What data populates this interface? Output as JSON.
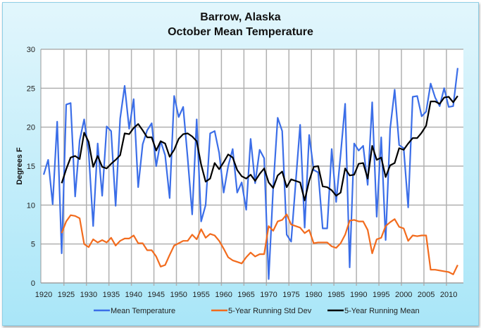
{
  "chart_data": {
    "type": "line",
    "title": "Barrow, Alaska",
    "subtitle": "October Mean Temperature",
    "xlabel": "",
    "ylabel": "Degrees F",
    "xlim": [
      1920,
      2012
    ],
    "ylim": [
      0,
      30
    ],
    "yticks": [
      0,
      5,
      10,
      15,
      20,
      25,
      30
    ],
    "xticks": [
      1920,
      1925,
      1930,
      1935,
      1940,
      1945,
      1950,
      1955,
      1960,
      1965,
      1970,
      1975,
      1980,
      1985,
      1990,
      1995,
      2000,
      2005,
      2010
    ],
    "grid": true,
    "legend": "bottom",
    "series": [
      {
        "name": "Mean Temperature",
        "color": "#3b6ee8",
        "start_year": 1920,
        "values": [
          13.9,
          15.8,
          10.1,
          20.7,
          3.8,
          22.9,
          23.1,
          11.1,
          18.3,
          21.0,
          16.8,
          7.3,
          17.9,
          11.2,
          20.1,
          19.5,
          9.9,
          21.1,
          25.3,
          19.8,
          23.6,
          12.3,
          17.8,
          19.6,
          20.5,
          15.0,
          18.2,
          16.4,
          10.9,
          24.0,
          21.3,
          22.6,
          16.0,
          8.8,
          21.0,
          7.9,
          10.0,
          19.2,
          19.5,
          16.7,
          11.6,
          15.0,
          17.2,
          11.6,
          12.9,
          9.4,
          18.5,
          12.8,
          17.1,
          16.0,
          0.5,
          12.2,
          21.2,
          19.5,
          6.2,
          5.3,
          12.8,
          20.3,
          7.1,
          19.0,
          14.5,
          14.2,
          7.0,
          7.0,
          17.2,
          10.4,
          16.5,
          23.0,
          2.0,
          17.9,
          17.0,
          17.6,
          12.6,
          23.2,
          8.5,
          18.7,
          5.5,
          19.8,
          24.8,
          17.7,
          17.3,
          9.7,
          23.9,
          24.0,
          21.4,
          22.0,
          25.6,
          23.8,
          22.7,
          25.0,
          22.6,
          22.7,
          27.6
        ]
      },
      {
        "name": "5-Year Running Std Dev",
        "color": "#f26b1d",
        "start_year": 1924,
        "values": [
          6.4,
          7.9,
          8.7,
          8.6,
          8.3,
          5.0,
          4.6,
          5.6,
          5.2,
          5.5,
          5.2,
          5.8,
          4.8,
          5.4,
          5.7,
          5.7,
          6.1,
          5.1,
          5.1,
          4.2,
          4.2,
          3.4,
          2.1,
          2.3,
          3.6,
          4.8,
          5.1,
          5.4,
          5.4,
          6.2,
          5.6,
          6.9,
          5.8,
          6.3,
          6.1,
          5.4,
          4.4,
          3.3,
          2.9,
          2.7,
          2.5,
          3.3,
          3.9,
          3.4,
          3.7,
          3.7,
          7.3,
          6.7,
          7.9,
          8.1,
          8.8,
          7.5,
          7.3,
          7.1,
          6.4,
          6.8,
          5.1,
          5.2,
          5.2,
          5.2,
          4.7,
          4.5,
          5.1,
          6.2,
          8.0,
          8.1,
          7.9,
          7.9,
          6.8,
          3.8,
          5.6,
          5.8,
          7.3,
          7.8,
          8.2,
          7.2,
          7.0,
          5.4,
          6.1,
          6.0,
          6.1,
          6.1,
          1.7,
          1.7,
          1.6,
          1.5,
          1.4,
          1.1,
          2.3
        ]
      },
      {
        "name": "5-Year Running Mean",
        "color": "#000000",
        "start_year": 1924,
        "values": [
          12.8,
          14.6,
          16.1,
          16.3,
          15.9,
          19.3,
          18.1,
          14.9,
          16.3,
          14.9,
          14.7,
          15.3,
          15.8,
          16.4,
          19.2,
          19.1,
          19.9,
          20.4,
          19.6,
          18.7,
          18.7,
          17.0,
          18.2,
          17.9,
          16.2,
          17.1,
          18.5,
          19.1,
          19.2,
          18.8,
          18.2,
          15.2,
          13.0,
          13.4,
          15.4,
          14.6,
          15.5,
          16.5,
          16.1,
          14.5,
          13.7,
          13.4,
          13.9,
          13.1,
          14.0,
          14.7,
          12.9,
          12.2,
          13.8,
          14.3,
          12.3,
          13.3,
          13.1,
          12.9,
          10.6,
          13.1,
          14.9,
          15.0,
          12.4,
          12.3,
          11.9,
          11.2,
          11.6,
          14.7,
          13.8,
          13.9,
          15.3,
          15.4,
          13.4,
          17.6,
          15.8,
          16.1,
          13.6,
          15.1,
          15.4,
          17.3,
          17.1,
          17.9,
          18.6,
          18.6,
          19.3,
          20.2,
          23.3,
          23.3,
          23.0,
          23.8,
          23.9,
          23.2,
          24.0
        ]
      }
    ]
  }
}
